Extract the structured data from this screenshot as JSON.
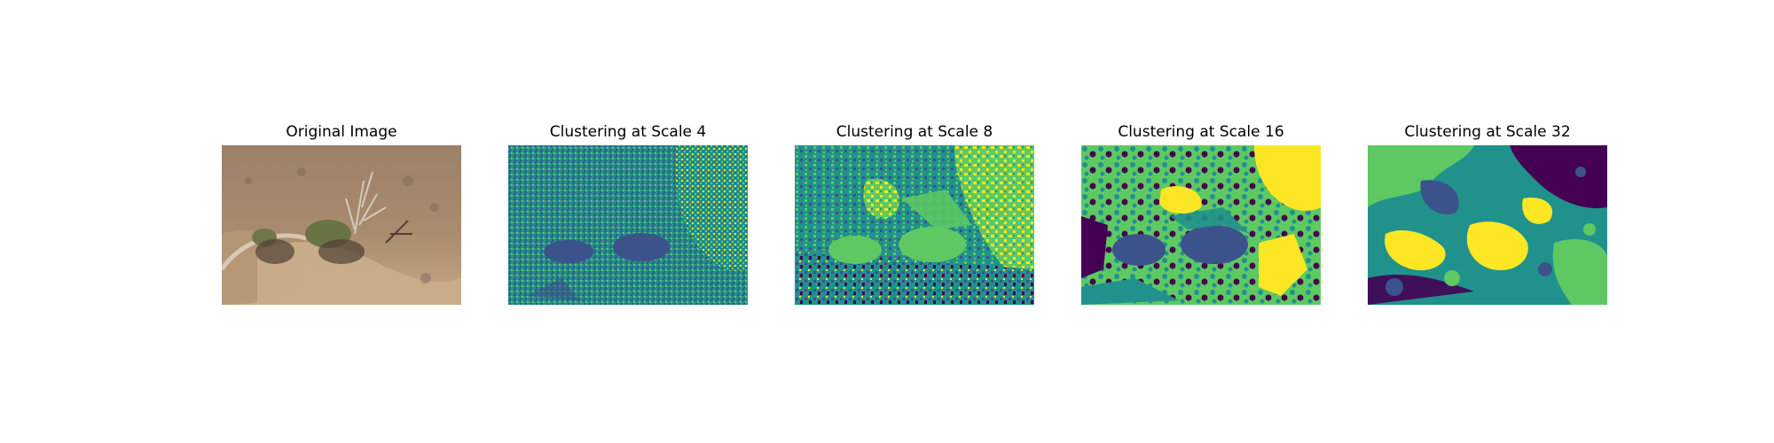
{
  "figure": {
    "panels": [
      {
        "id": "original",
        "title": "Original Image",
        "kind": "photo"
      },
      {
        "id": "scale4",
        "title": "Clustering at Scale 4",
        "kind": "cluster"
      },
      {
        "id": "scale8",
        "title": "Clustering at Scale 8",
        "kind": "cluster"
      },
      {
        "id": "scale16",
        "title": "Clustering at Scale 16",
        "kind": "cluster"
      },
      {
        "id": "scale32",
        "title": "Clustering at Scale 32",
        "kind": "cluster"
      }
    ],
    "colors": {
      "viridis_purple": "#440154",
      "viridis_blue": "#3b528b",
      "viridis_teal": "#21918c",
      "viridis_green": "#5ec962",
      "viridis_yellow": "#fde725",
      "sand_light": "#c8ab8a",
      "sand_mid": "#a88a6b",
      "sand_dark": "#6d5947",
      "shrub_green": "#6f7a4a"
    }
  }
}
